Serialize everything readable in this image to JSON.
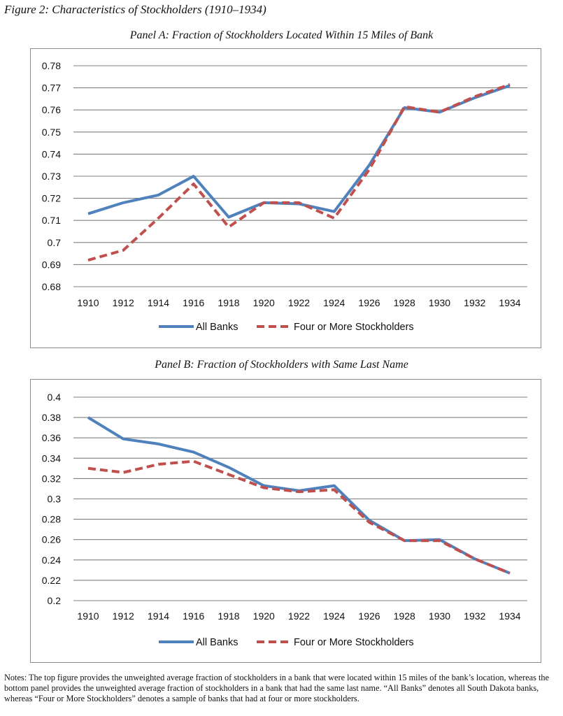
{
  "figure_title": "Figure 2: Characteristics of Stockholders (1910–1934)",
  "notes": "Notes: The top figure provides the unweighted average fraction of stockholders in a bank that were located within 15 miles of the bank’s location, whereas the bottom panel provides the unweighted average fraction of stockholders in a bank that had the same last name. “All Banks” denotes all South Dakota banks, whereas “Four or More Stockholders” denotes a sample of banks that had at four or more stockholders.",
  "colors": {
    "all_banks": "#4f81bd",
    "four_or_more": "#c0504d",
    "grid": "#808080"
  },
  "chart_data": [
    {
      "type": "line",
      "title": "Panel A: Fraction of Stockholders Located Within 15 Miles of Bank",
      "xlabel": "",
      "ylabel": "",
      "categories": [
        "1910",
        "1912",
        "1914",
        "1916",
        "1918",
        "1920",
        "1922",
        "1924",
        "1926",
        "1928",
        "1930",
        "1932",
        "1934"
      ],
      "yticks": [
        "0.68",
        "0.69",
        "0.7",
        "0.71",
        "0.72",
        "0.73",
        "0.74",
        "0.75",
        "0.76",
        "0.77",
        "0.78"
      ],
      "ylim": [
        0.68,
        0.78
      ],
      "grid": true,
      "legend": "bottom",
      "series": [
        {
          "name": "All Banks",
          "style": "solid",
          "values": [
            0.713,
            0.718,
            0.7215,
            0.73,
            0.7115,
            0.718,
            0.7175,
            0.714,
            0.735,
            0.761,
            0.759,
            0.7655,
            0.771
          ]
        },
        {
          "name": "Four or More Stockholders",
          "style": "dashed",
          "values": [
            0.692,
            0.6965,
            0.711,
            0.7265,
            0.707,
            0.718,
            0.718,
            0.711,
            0.733,
            0.7615,
            0.759,
            0.766,
            0.7715
          ]
        }
      ]
    },
    {
      "type": "line",
      "title": "Panel B: Fraction of Stockholders with Same Last Name",
      "xlabel": "",
      "ylabel": "",
      "categories": [
        "1910",
        "1912",
        "1914",
        "1916",
        "1918",
        "1920",
        "1922",
        "1924",
        "1926",
        "1928",
        "1930",
        "1932",
        "1934"
      ],
      "yticks": [
        "0.2",
        "0.22",
        "0.24",
        "0.26",
        "0.28",
        "0.3",
        "0.32",
        "0.34",
        "0.36",
        "0.38",
        "0.4"
      ],
      "ylim": [
        0.2,
        0.4
      ],
      "grid": true,
      "legend": "bottom",
      "series": [
        {
          "name": "All Banks",
          "style": "solid",
          "values": [
            0.38,
            0.359,
            0.354,
            0.346,
            0.331,
            0.313,
            0.308,
            0.313,
            0.279,
            0.259,
            0.26,
            0.241,
            0.227
          ]
        },
        {
          "name": "Four or More Stockholders",
          "style": "dashed",
          "values": [
            0.33,
            0.326,
            0.334,
            0.337,
            0.324,
            0.311,
            0.307,
            0.309,
            0.277,
            0.259,
            0.259,
            0.241,
            0.227
          ]
        }
      ]
    }
  ]
}
